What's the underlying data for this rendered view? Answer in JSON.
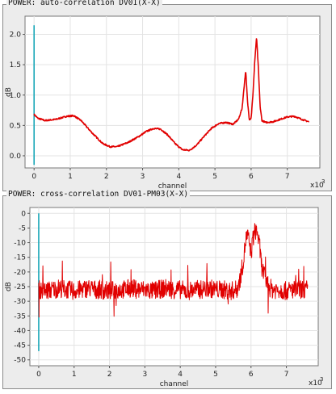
{
  "panels": [
    {
      "title": "POWER: auto-correlation DV01(X-X)"
    },
    {
      "title": "POWER: cross-correlation DV01-PM03(X-X)"
    }
  ],
  "colors": {
    "series": "#e10000",
    "marker": "#1aa7b8",
    "plot_bg": "#ffffff",
    "panel_bg": "#ececec",
    "grid": "#e3e3e3"
  },
  "chart_data": [
    {
      "type": "line",
      "title": "POWER: auto-correlation DV01(X-X)",
      "xlabel": "channel",
      "ylabel": "dB",
      "x_multiplier_label": "x10",
      "x_multiplier_exp": "3",
      "xlim": [
        -0.25,
        7.9
      ],
      "ylim": [
        -0.2,
        2.3
      ],
      "grid": true,
      "xticks": [
        0,
        1,
        2,
        3,
        4,
        5,
        6,
        7
      ],
      "yticks": [
        0.0,
        0.5,
        1.0,
        1.5,
        2.0
      ],
      "ytick_labels": [
        "0.0",
        "0.5",
        "1.0",
        "1.5",
        "2.0"
      ],
      "marker_line": {
        "x": 0,
        "y_from": -0.15,
        "y_to": 2.15
      },
      "series": [
        {
          "x": [
            0,
            0.1,
            0.3,
            0.6,
            0.9,
            1.1,
            1.3,
            1.6,
            1.9,
            2.1,
            2.3,
            2.6,
            2.9,
            3.1,
            3.3,
            3.5,
            3.7,
            3.9,
            4.1,
            4.3,
            4.5,
            4.7,
            4.9,
            5.1,
            5.3,
            5.5,
            5.65,
            5.75,
            5.8,
            5.85,
            5.9,
            5.95,
            6.0,
            6.05,
            6.1,
            6.15,
            6.2,
            6.25,
            6.3,
            6.4,
            6.6,
            6.8,
            7.0,
            7.2,
            7.4,
            7.6
          ],
          "y": [
            0.68,
            0.62,
            0.58,
            0.6,
            0.65,
            0.66,
            0.58,
            0.38,
            0.2,
            0.15,
            0.15,
            0.22,
            0.32,
            0.4,
            0.45,
            0.44,
            0.34,
            0.2,
            0.1,
            0.09,
            0.18,
            0.32,
            0.45,
            0.53,
            0.55,
            0.52,
            0.6,
            0.78,
            1.1,
            1.4,
            0.9,
            0.6,
            0.62,
            1.0,
            1.55,
            1.95,
            1.45,
            0.8,
            0.58,
            0.55,
            0.56,
            0.6,
            0.64,
            0.65,
            0.6,
            0.56
          ]
        }
      ]
    },
    {
      "type": "line",
      "title": "POWER: cross-correlation DV01-PM03(X-X)",
      "xlabel": "channel",
      "ylabel": "dB",
      "x_multiplier_label": "x10",
      "x_multiplier_exp": "3",
      "xlim": [
        -0.25,
        7.9
      ],
      "ylim": [
        -52,
        2
      ],
      "grid": true,
      "xticks": [
        0,
        1,
        2,
        3,
        4,
        5,
        6,
        7
      ],
      "yticks": [
        0,
        -5,
        -10,
        -15,
        -20,
        -25,
        -30,
        -35,
        -40,
        -45,
        -50
      ],
      "ytick_labels": [
        "0",
        "-5",
        "-10",
        "-15",
        "-20",
        "-25",
        "-30",
        "-35",
        "-40",
        "-45",
        "-50"
      ],
      "marker_line": {
        "x": 0,
        "y_from": -47,
        "y_to": 0
      },
      "series": [
        {
          "x": [
            0,
            0.2,
            0.4,
            0.6,
            0.8,
            1.0,
            1.2,
            1.4,
            1.6,
            1.8,
            2.0,
            2.2,
            2.4,
            2.6,
            2.8,
            3.0,
            3.2,
            3.4,
            3.6,
            3.8,
            4.0,
            4.2,
            4.4,
            4.6,
            4.8,
            5.0,
            5.2,
            5.4,
            5.6,
            5.7,
            5.8,
            5.85,
            5.9,
            5.95,
            6.0,
            6.05,
            6.1,
            6.15,
            6.2,
            6.25,
            6.3,
            6.4,
            6.5,
            6.6,
            6.8,
            7.0,
            7.2,
            7.4,
            7.6
          ],
          "y": [
            -26,
            -26.5,
            -26,
            -25.5,
            -26,
            -26.5,
            -26,
            -25.5,
            -26,
            -26,
            -26.5,
            -26,
            -26,
            -25.5,
            -26,
            -26,
            -26.5,
            -26,
            -25.5,
            -26,
            -26,
            -26.5,
            -26,
            -26,
            -25.5,
            -26,
            -26,
            -26.5,
            -26,
            -22,
            -15,
            -9,
            -7.5,
            -10,
            -14,
            -9,
            -6.5,
            -5.5,
            -8,
            -12,
            -18,
            -22,
            -25,
            -26,
            -26,
            -26.5,
            -26,
            -26,
            -26
          ]
        }
      ]
    }
  ]
}
